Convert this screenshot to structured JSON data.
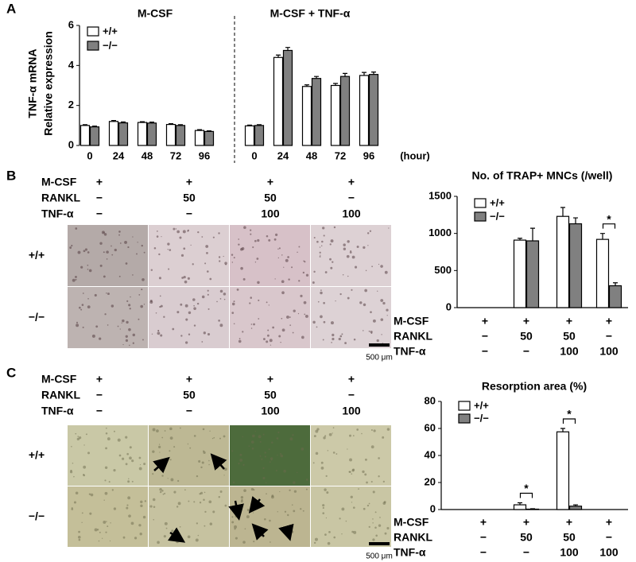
{
  "chart_data": [
    {
      "type": "bar",
      "panel": "A",
      "group_titles": [
        "M-CSF",
        "M-CSF + TNF-α"
      ],
      "ylabel": [
        "TNF-α mRNA",
        "Relative expression"
      ],
      "xlabel": "(hour)",
      "categories": [
        "0",
        "24",
        "48",
        "72",
        "96",
        "0",
        "24",
        "48",
        "72",
        "96"
      ],
      "series": [
        {
          "name": "+/+",
          "color": "#ffffff",
          "values": [
            1.0,
            1.2,
            1.15,
            1.05,
            0.75,
            0.98,
            4.4,
            2.95,
            3.0,
            3.5
          ],
          "errors": [
            0.04,
            0.05,
            0.04,
            0.04,
            0.04,
            0.04,
            0.12,
            0.08,
            0.1,
            0.15
          ]
        },
        {
          "name": "−/−",
          "color": "#808080",
          "values": [
            0.93,
            1.13,
            1.12,
            1.0,
            0.7,
            1.0,
            4.75,
            3.35,
            3.45,
            3.55
          ],
          "errors": [
            0.04,
            0.05,
            0.05,
            0.04,
            0.03,
            0.04,
            0.15,
            0.1,
            0.15,
            0.12
          ]
        }
      ],
      "ylim": [
        0,
        6
      ],
      "yticks": [
        0,
        2,
        4,
        6
      ],
      "legend": "upper left"
    },
    {
      "type": "bar",
      "title": "No. of TRAP+ MNCs (/well)",
      "categories": [
        null,
        null,
        null,
        null
      ],
      "treatments": [
        {
          "name": "M-CSF",
          "levels": [
            "+",
            "+",
            "+",
            "+"
          ]
        },
        {
          "name": "RANKL",
          "levels": [
            "−",
            "50",
            "50",
            "−"
          ]
        },
        {
          "name": "TNF-α",
          "levels": [
            "−",
            "−",
            "100",
            "100"
          ]
        }
      ],
      "series": [
        {
          "name": "+/+",
          "color": "#ffffff",
          "values": [
            0,
            910,
            1230,
            920
          ],
          "errors": [
            0,
            25,
            120,
            80
          ]
        },
        {
          "name": "−/−",
          "color": "#808080",
          "values": [
            0,
            900,
            1130,
            295
          ],
          "errors": [
            0,
            170,
            80,
            40
          ]
        }
      ],
      "ylim": [
        0,
        1500
      ],
      "yticks": [
        0,
        500,
        1000,
        1500
      ],
      "legend": "upper left",
      "significance": [
        {
          "category": 3,
          "label": "*"
        }
      ]
    },
    {
      "type": "bar",
      "title": "Resorption area (%)",
      "categories": [
        null,
        null,
        null,
        null
      ],
      "treatments": [
        {
          "name": "M-CSF",
          "levels": [
            "+",
            "+",
            "+",
            "+"
          ]
        },
        {
          "name": "RANKL",
          "levels": [
            "−",
            "50",
            "50",
            "−"
          ]
        },
        {
          "name": "TNF-α",
          "levels": [
            "−",
            "−",
            "100",
            "100"
          ]
        }
      ],
      "series": [
        {
          "name": "+/+",
          "color": "#ffffff",
          "values": [
            0,
            3.5,
            57.5,
            0
          ],
          "errors": [
            0,
            1.5,
            2.5,
            0
          ]
        },
        {
          "name": "−/−",
          "color": "#808080",
          "values": [
            0,
            0.3,
            2.5,
            0
          ],
          "errors": [
            0,
            0.3,
            1,
            0
          ]
        }
      ],
      "ylim": [
        0,
        80
      ],
      "yticks": [
        0,
        20,
        40,
        60,
        80
      ],
      "legend": "upper left",
      "significance": [
        {
          "category": 1,
          "label": "*"
        },
        {
          "category": 2,
          "label": "*"
        }
      ]
    }
  ],
  "image_panels": [
    {
      "panel": "B",
      "treatments": [
        {
          "name": "M-CSF",
          "levels": [
            "+",
            "+",
            "+",
            "+"
          ]
        },
        {
          "name": "RANKL",
          "levels": [
            "−",
            "50",
            "50",
            "−"
          ]
        },
        {
          "name": "TNF-α",
          "levels": [
            "−",
            "−",
            "100",
            "100"
          ]
        }
      ],
      "rows": [
        "+/+",
        "−/−"
      ],
      "scale_bar": "500 μm"
    },
    {
      "panel": "C",
      "treatments": [
        {
          "name": "M-CSF",
          "levels": [
            "+",
            "+",
            "+",
            "+"
          ]
        },
        {
          "name": "RANKL",
          "levels": [
            "−",
            "50",
            "50",
            "−"
          ]
        },
        {
          "name": "TNF-α",
          "levels": [
            "−",
            "−",
            "100",
            "100"
          ]
        }
      ],
      "rows": [
        "+/+",
        "−/−"
      ],
      "scale_bar": "500 μm"
    }
  ]
}
